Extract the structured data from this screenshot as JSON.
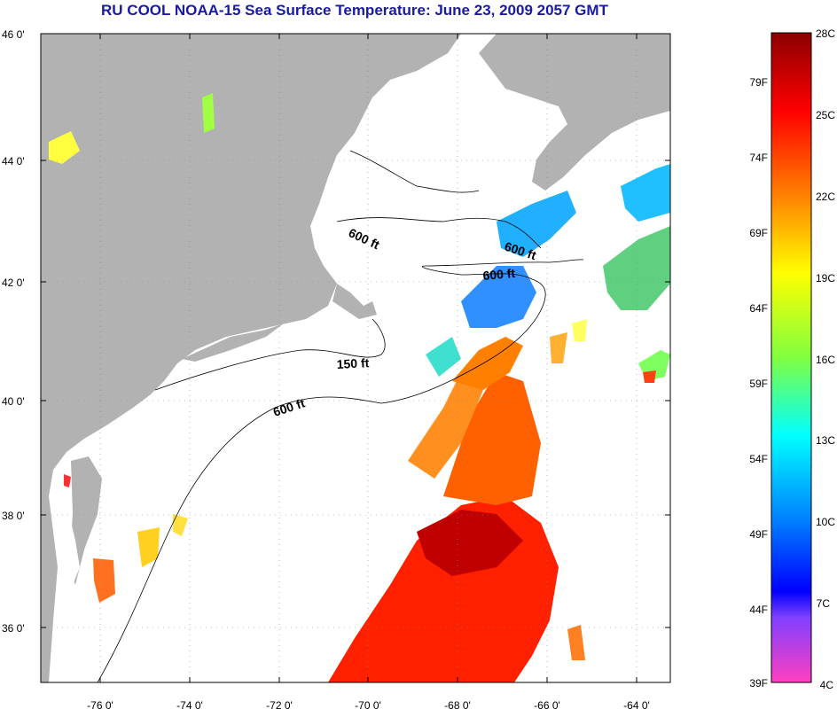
{
  "title": "RU COOL  NOAA-15  Sea Surface Temperature:  June 23, 2009 2057 GMT",
  "map": {
    "lat_labels": [
      "46 0'",
      "44 0'",
      "42 0'",
      "40 0'",
      "38 0'",
      "36 0'"
    ],
    "lon_labels": [
      "-76 0'",
      "-74 0'",
      "-72 0'",
      "-70 0'",
      "-68 0'",
      "-66 0'",
      "-64 0'"
    ],
    "lat_range": [
      35,
      46
    ],
    "lon_range": [
      -77,
      -63
    ],
    "land_color": "#b2b2b2",
    "water_color": "#ffffff",
    "contour_labels": [
      "600 ft",
      "600 ft",
      "600 ft",
      "150 ft",
      "600 ft"
    ]
  },
  "colorbar": {
    "fahrenheit_labels": [
      "79F",
      "74F",
      "69F",
      "64F",
      "59F",
      "54F",
      "49F",
      "44F",
      "39F"
    ],
    "celsius_labels": [
      "28C",
      "25C",
      "22C",
      "19C",
      "16C",
      "13C",
      "10C",
      "7C",
      "4C"
    ],
    "range_c": [
      4,
      28
    ],
    "colors": [
      "#8b0000",
      "#ff0000",
      "#ff8000",
      "#ffff00",
      "#80ff40",
      "#00ffff",
      "#0080ff",
      "#0000ff",
      "#a040ff",
      "#ff40c0"
    ]
  }
}
